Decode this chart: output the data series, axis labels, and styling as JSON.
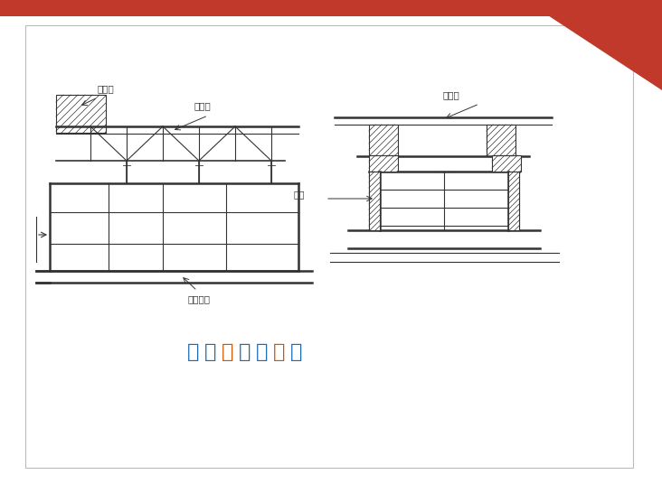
{
  "title": "平行桁架式挂篮",
  "title_color_chars": [
    "#1a6ab5",
    "#1a6ab5",
    "#e06020",
    "#1a6ab5",
    "#1a6ab5",
    "#e06020",
    "#1a6ab5"
  ],
  "bg_color": "#ffffff",
  "slide_bg": "#ffffff",
  "border_color": "#cccccc",
  "red_corner_color": "#c0392b",
  "label_left_1": "平衡重",
  "label_left_2": "主桁架",
  "label_left_3": "底模平台",
  "label_right_1": "主桁架",
  "label_right_2": "吊杆",
  "line_color": "#333333",
  "hatch_color": "#555555"
}
